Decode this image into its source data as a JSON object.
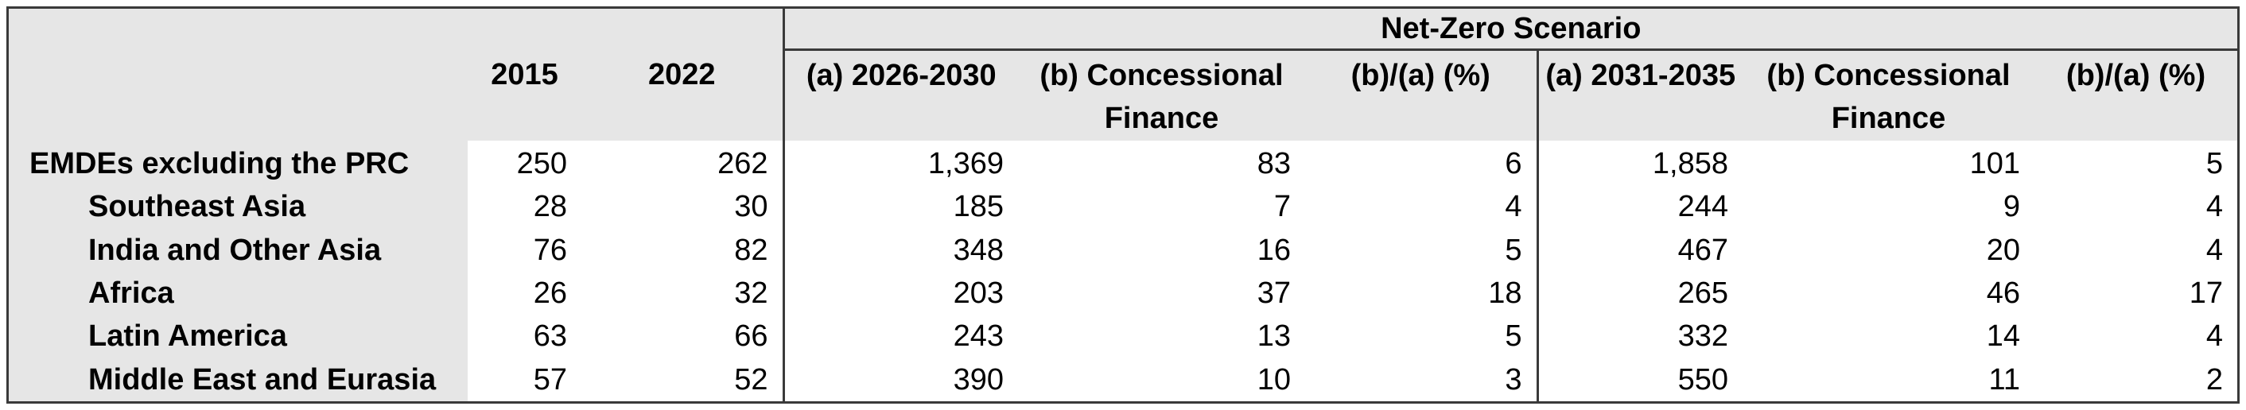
{
  "table": {
    "group_header": "Net-Zero  Scenario",
    "columns": {
      "year1": "2015",
      "year2": "2022",
      "p1a": "(a) 2026-2030",
      "p1b_line1": "(b) Concessional",
      "p1b_line2": "Finance",
      "p1r": "(b)/(a) (%)",
      "p2a": "(a) 2031-2035",
      "p2b_line1": "(b) Concessional",
      "p2b_line2": "Finance",
      "p2r": "(b)/(a) (%)"
    },
    "rows": [
      {
        "label": "EMDEs excluding the PRC",
        "v2015": "250",
        "v2022": "262",
        "p1a": "1,369",
        "p1b": "83",
        "p1r": "6",
        "p2a": "1,858",
        "p2b": "101",
        "p2r": "5"
      },
      {
        "label": "Southeast Asia",
        "v2015": "28",
        "v2022": "30",
        "p1a": "185",
        "p1b": "7",
        "p1r": "4",
        "p2a": "244",
        "p2b": "9",
        "p2r": "4"
      },
      {
        "label": "India and Other Asia",
        "v2015": "76",
        "v2022": "82",
        "p1a": "348",
        "p1b": "16",
        "p1r": "5",
        "p2a": "467",
        "p2b": "20",
        "p2r": "4"
      },
      {
        "label": "Africa",
        "v2015": "26",
        "v2022": "32",
        "p1a": "203",
        "p1b": "37",
        "p1r": "18",
        "p2a": "265",
        "p2b": "46",
        "p2r": "17"
      },
      {
        "label": "Latin America",
        "v2015": "63",
        "v2022": "66",
        "p1a": "243",
        "p1b": "13",
        "p1r": "5",
        "p2a": "332",
        "p2b": "14",
        "p2r": "4"
      },
      {
        "label": "Middle East and Eurasia",
        "v2015": "57",
        "v2022": "52",
        "p1a": "390",
        "p1b": "10",
        "p1r": "3",
        "p2a": "550",
        "p2b": "11",
        "p2r": "2"
      }
    ]
  }
}
